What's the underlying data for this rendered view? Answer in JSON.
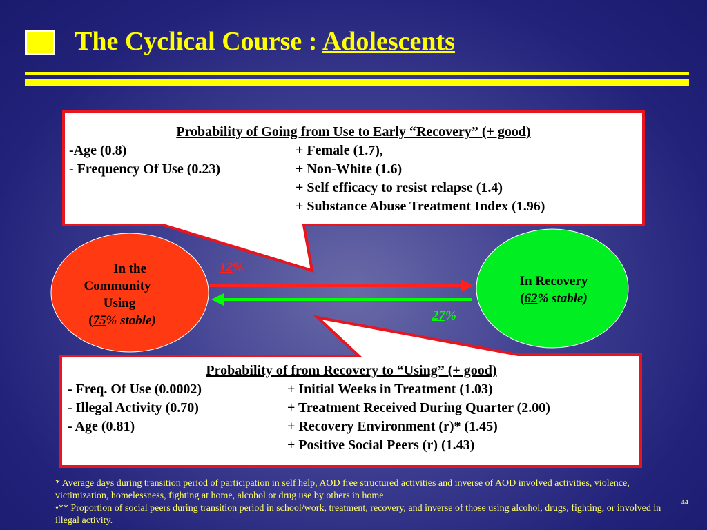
{
  "title": {
    "main": "The Cyclical Course : ",
    "emphasis": "Adolescents"
  },
  "top_box": {
    "heading": "Probability of Going from Use to Early “Recovery” (+ good)",
    "rows": [
      {
        "left": "-Age (0.8)",
        "right": "+ Female (1.7),"
      },
      {
        "left": "- Frequency Of  Use (0.23)",
        "right": "+ Non-White (1.6)"
      },
      {
        "left": "",
        "right": "+ Self efficacy to resist relapse (1.4)"
      },
      {
        "left": "",
        "right": "+ Substance Abuse Treatment Index (1.96)"
      }
    ]
  },
  "left_circle": {
    "line1": "In the",
    "line2": "Community",
    "line3": "Using",
    "pct_open": "(",
    "pct": "75",
    "pct_suffix": "% stable)"
  },
  "right_circle": {
    "line1": "In Recovery",
    "pct_open": "(",
    "pct": "62",
    "pct_suffix": "% stable)"
  },
  "arrow_right": {
    "num": "12",
    "sign": "%",
    "color": "#ff2020"
  },
  "arrow_left": {
    "num": "27",
    "sign": "%",
    "color": "#00ff00"
  },
  "bottom_box": {
    "heading": "Probability of from Recovery to “Using” (+ good)",
    "rows": [
      {
        "left": "- Freq. Of  Use (0.0002)",
        "right": "+ Initial Weeks in Treatment (1.03)"
      },
      {
        "left": "- Illegal Activity (0.70)",
        "right": "+ Treatment Received During Quarter (2.00)"
      },
      {
        "left": "- Age (0.81)",
        "right": "+ Recovery Environment (r)* (1.45)"
      },
      {
        "left": "",
        "right": "+ Positive Social Peers (r) (1.43)"
      }
    ]
  },
  "footnote": {
    "line1": "* Average days during transition period of participation in self help, AOD free structured activities and inverse of AOD involved activities, violence, victimization, homelessness, fighting at home, alcohol or drug use by others in home",
    "line2": "•** Proportion of social peers during transition period  in school/work, treatment, recovery, and inverse of those using alcohol, drugs, fighting,  or involved in illegal activity."
  },
  "page_number": "44",
  "colors": {
    "title": "#ffff00",
    "box_border": "#e8141e",
    "using_circle": "#ff3a12",
    "recovery_circle": "#00ee22"
  }
}
